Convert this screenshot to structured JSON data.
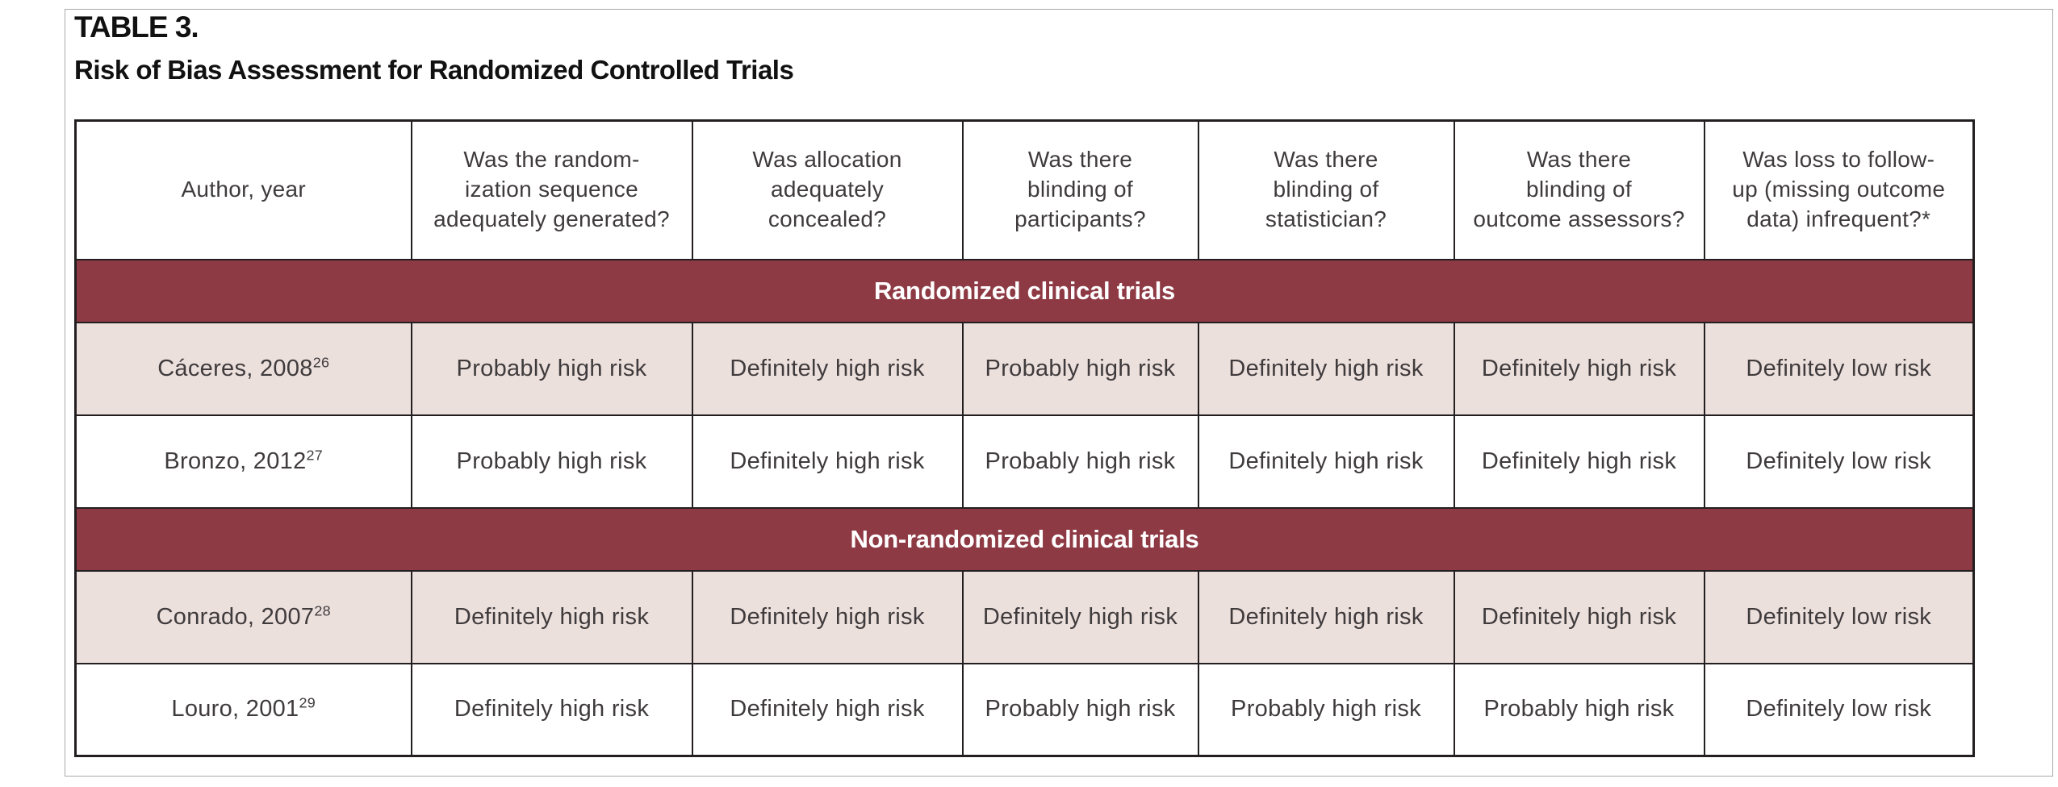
{
  "title": "TABLE 3.",
  "subtitle": "Risk of Bias Assessment for Randomized Controlled Trials",
  "colors": {
    "section_header_bg": "#8e3a44",
    "section_header_text": "#ffffff",
    "shaded_row_bg": "#ece0dd",
    "plain_row_bg": "#ffffff",
    "border": "#231f20",
    "text": "#3f3b3c"
  },
  "table": {
    "columns": [
      {
        "lines": [
          "Author, year"
        ]
      },
      {
        "lines": [
          "Was the random-",
          "ization sequence",
          "adequately generated?"
        ]
      },
      {
        "lines": [
          "Was allocation",
          "adequately",
          "concealed?"
        ]
      },
      {
        "lines": [
          "Was there",
          "blinding of",
          "participants?"
        ]
      },
      {
        "lines": [
          "Was there",
          "blinding of",
          "statistician?"
        ]
      },
      {
        "lines": [
          "Was there",
          "blinding of",
          "outcome assessors?"
        ]
      },
      {
        "lines": [
          "Was loss to follow-",
          "up (missing outcome",
          "data) infrequent?*"
        ]
      }
    ],
    "sections": [
      {
        "header": "Randomized clinical trials",
        "rows": [
          {
            "author": "Cáceres, 2008",
            "ref": "26",
            "shaded": true,
            "values": [
              "Probably high risk",
              "Definitely high risk",
              "Probably high risk",
              "Definitely high risk",
              "Definitely high risk",
              "Definitely low risk"
            ]
          },
          {
            "author": "Bronzo, 2012",
            "ref": "27",
            "shaded": false,
            "values": [
              "Probably high risk",
              "Definitely high risk",
              "Probably high risk",
              "Definitely high risk",
              "Definitely high risk",
              "Definitely low risk"
            ]
          }
        ]
      },
      {
        "header": "Non-randomized clinical trials",
        "rows": [
          {
            "author": "Conrado, 2007",
            "ref": "28",
            "shaded": true,
            "values": [
              "Definitely high risk",
              "Definitely high risk",
              "Definitely high risk",
              "Definitely high risk",
              "Definitely high risk",
              "Definitely low risk"
            ]
          },
          {
            "author": "Louro, 2001",
            "ref": "29",
            "shaded": false,
            "values": [
              "Definitely high risk",
              "Definitely high risk",
              "Probably high risk",
              "Probably high risk",
              "Probably high risk",
              "Definitely low risk"
            ]
          }
        ]
      }
    ]
  }
}
